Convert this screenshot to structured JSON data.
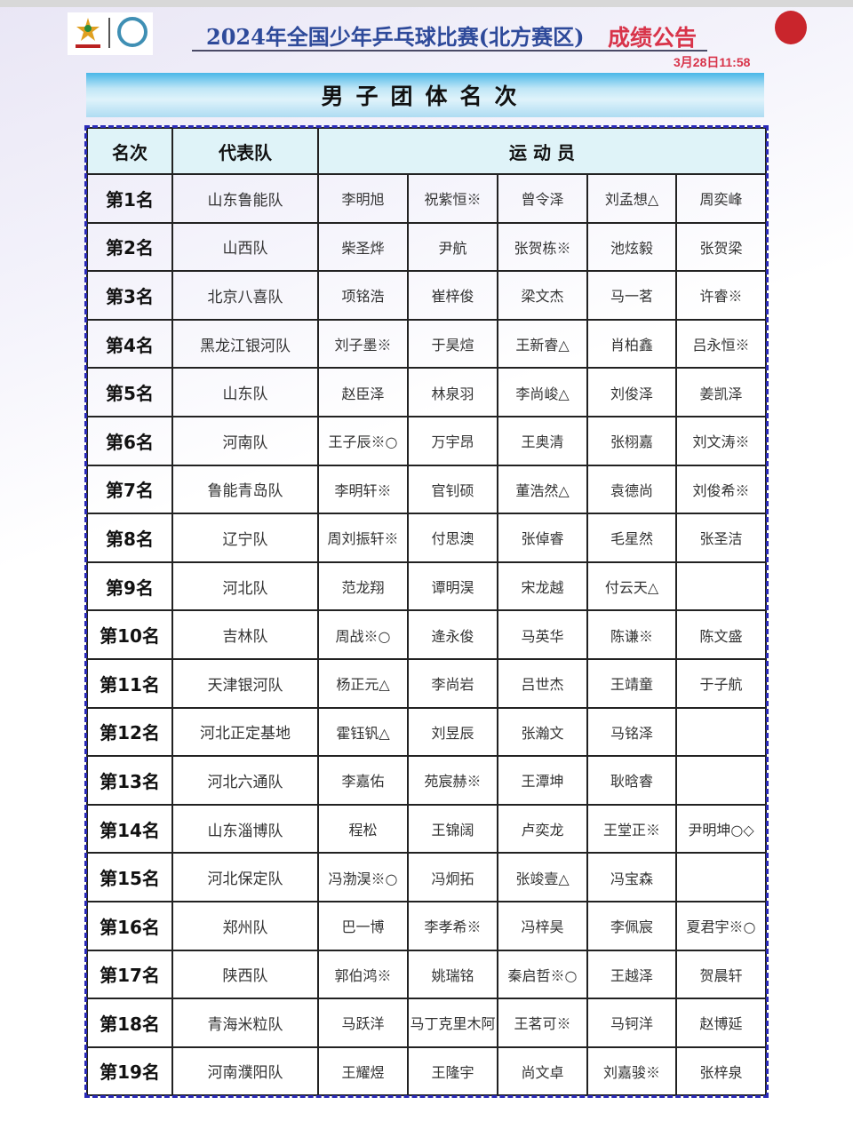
{
  "header": {
    "title": "2024年全国少年乒乓球比赛(北方赛区)",
    "title_suffix": "成绩公告",
    "datetime": "3月28日11:58",
    "accent_color": "#d8344a",
    "title_color": "#2e4a9a"
  },
  "section_title": "男子团体名次",
  "table": {
    "columns": [
      "名次",
      "代表队",
      "运 动 员"
    ],
    "rows": [
      {
        "rank": "第1名",
        "team": "山东鲁能队",
        "players": [
          "李明旭",
          "祝紫恒※",
          "曾令泽",
          "刘孟想△",
          "周奕峰"
        ]
      },
      {
        "rank": "第2名",
        "team": "山西队",
        "players": [
          "柴圣烨",
          "尹航",
          "张贺栋※",
          "池炫毅",
          "张贺梁"
        ]
      },
      {
        "rank": "第3名",
        "team": "北京八喜队",
        "players": [
          "项铭浩",
          "崔梓俊",
          "梁文杰",
          "马一茗",
          "许睿※"
        ]
      },
      {
        "rank": "第4名",
        "team": "黑龙江银河队",
        "players": [
          "刘子墨※",
          "于昊煊",
          "王新睿△",
          "肖柏鑫",
          "吕永恒※"
        ]
      },
      {
        "rank": "第5名",
        "team": "山东队",
        "players": [
          "赵臣泽",
          "林泉羽",
          "李尚峻△",
          "刘俊泽",
          "姜凯泽"
        ]
      },
      {
        "rank": "第6名",
        "team": "河南队",
        "players": [
          "王子辰※○",
          "万宇昂",
          "王奥清",
          "张栩嘉",
          "刘文涛※"
        ]
      },
      {
        "rank": "第7名",
        "team": "鲁能青岛队",
        "players": [
          "李明轩※",
          "官钊硕",
          "董浩然△",
          "袁德尚",
          "刘俊希※"
        ]
      },
      {
        "rank": "第8名",
        "team": "辽宁队",
        "players": [
          "周刘振轩※",
          "付思澳",
          "张倬睿",
          "毛星然",
          "张圣洁"
        ]
      },
      {
        "rank": "第9名",
        "team": "河北队",
        "players": [
          "范龙翔",
          "谭明淏",
          "宋龙越",
          "付云天△",
          ""
        ]
      },
      {
        "rank": "第10名",
        "team": "吉林队",
        "players": [
          "周战※○",
          "逄永俊",
          "马英华",
          "陈谦※",
          "陈文盛"
        ]
      },
      {
        "rank": "第11名",
        "team": "天津银河队",
        "players": [
          "杨正元△",
          "李尚岩",
          "吕世杰",
          "王靖童",
          "于子航"
        ]
      },
      {
        "rank": "第12名",
        "team": "河北正定基地",
        "players": [
          "霍钰钒△",
          "刘昱辰",
          "张瀚文",
          "马铭泽",
          ""
        ]
      },
      {
        "rank": "第13名",
        "team": "河北六通队",
        "players": [
          "李嘉佑",
          "苑宸赫※",
          "王潭坤",
          "耿晗睿",
          ""
        ]
      },
      {
        "rank": "第14名",
        "team": "山东淄博队",
        "players": [
          "程松",
          "王锦阔",
          "卢奕龙",
          "王堂正※",
          "尹明坤○◇"
        ]
      },
      {
        "rank": "第15名",
        "team": "河北保定队",
        "players": [
          "冯渤淏※○",
          "冯炯拓",
          "张竣壹△",
          "冯宝森",
          ""
        ]
      },
      {
        "rank": "第16名",
        "team": "郑州队",
        "players": [
          "巴一博",
          "李孝希※",
          "冯梓昊",
          "李佩宸",
          "夏君宇※○"
        ]
      },
      {
        "rank": "第17名",
        "team": "陕西队",
        "players": [
          "郭伯鸿※",
          "姚瑞铭",
          "秦启哲※○",
          "王越泽",
          "贺晨轩"
        ]
      },
      {
        "rank": "第18名",
        "team": "青海米粒队",
        "players": [
          "马跃洋",
          "马丁克里木阿",
          "王茗可※",
          "马钶洋",
          "赵博延"
        ]
      },
      {
        "rank": "第19名",
        "team": "河南濮阳队",
        "players": [
          "王耀煜",
          "王隆宇",
          "尚文卓",
          "刘嘉骏※",
          "张梓泉"
        ]
      }
    ]
  }
}
